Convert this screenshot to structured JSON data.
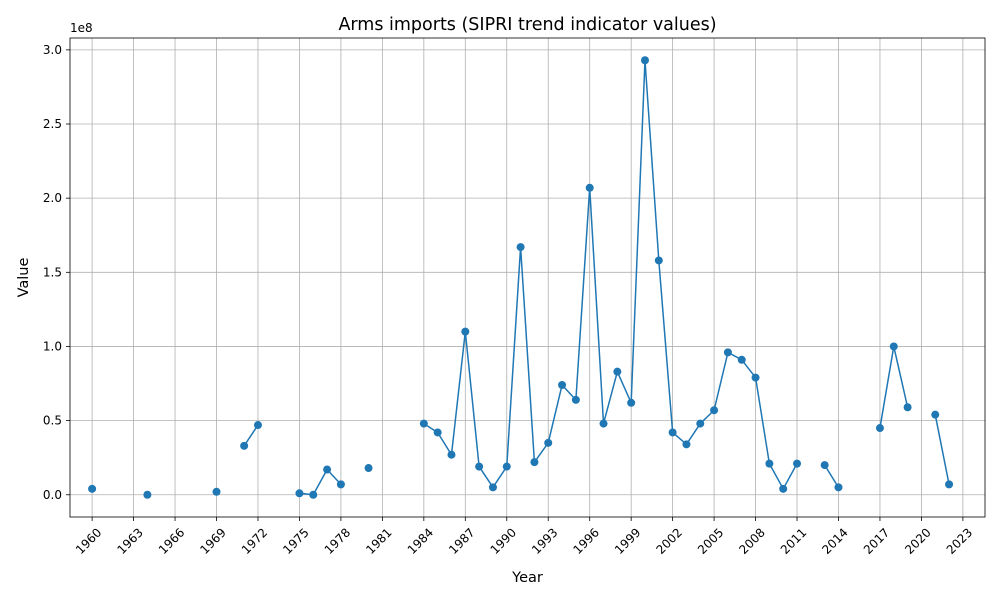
{
  "chart_data": {
    "type": "line",
    "title": "Arms imports (SIPRI trend indicator values)",
    "xlabel": "Year",
    "ylabel": "Value",
    "y_multiplier_label": "1e8",
    "xlim": [
      1958.4,
      2024.6
    ],
    "ylim": [
      -15000000,
      308000000
    ],
    "x_ticks": [
      1960,
      1963,
      1966,
      1969,
      1972,
      1975,
      1978,
      1981,
      1984,
      1987,
      1990,
      1993,
      1996,
      1999,
      2002,
      2005,
      2008,
      2011,
      2014,
      2017,
      2020,
      2023
    ],
    "y_ticks": [
      0,
      50000000,
      100000000,
      150000000,
      200000000,
      250000000,
      300000000
    ],
    "y_tick_labels": [
      "0.0",
      "0.5",
      "1.0",
      "1.5",
      "2.0",
      "2.5",
      "3.0"
    ],
    "grid": true,
    "color": "#1f77b4",
    "segments": [
      [
        {
          "x": 1960,
          "y": 4000000
        }
      ],
      [
        {
          "x": 1964,
          "y": 0
        }
      ],
      [
        {
          "x": 1969,
          "y": 2000000
        }
      ],
      [
        {
          "x": 1971,
          "y": 33000000
        },
        {
          "x": 1972,
          "y": 47000000
        }
      ],
      [
        {
          "x": 1975,
          "y": 1000000
        },
        {
          "x": 1976,
          "y": 0
        },
        {
          "x": 1977,
          "y": 17000000
        },
        {
          "x": 1978,
          "y": 7000000
        }
      ],
      [
        {
          "x": 1980,
          "y": 18000000
        }
      ],
      [
        {
          "x": 1984,
          "y": 48000000
        },
        {
          "x": 1985,
          "y": 42000000
        },
        {
          "x": 1986,
          "y": 27000000
        },
        {
          "x": 1987,
          "y": 110000000
        },
        {
          "x": 1988,
          "y": 19000000
        },
        {
          "x": 1989,
          "y": 5000000
        },
        {
          "x": 1990,
          "y": 19000000
        },
        {
          "x": 1991,
          "y": 167000000
        },
        {
          "x": 1992,
          "y": 22000000
        },
        {
          "x": 1993,
          "y": 35000000
        },
        {
          "x": 1994,
          "y": 74000000
        },
        {
          "x": 1995,
          "y": 64000000
        },
        {
          "x": 1996,
          "y": 207000000
        },
        {
          "x": 1997,
          "y": 48000000
        },
        {
          "x": 1998,
          "y": 83000000
        },
        {
          "x": 1999,
          "y": 62000000
        },
        {
          "x": 2000,
          "y": 293000000
        },
        {
          "x": 2001,
          "y": 158000000
        },
        {
          "x": 2002,
          "y": 42000000
        },
        {
          "x": 2003,
          "y": 34000000
        },
        {
          "x": 2004,
          "y": 48000000
        },
        {
          "x": 2005,
          "y": 57000000
        },
        {
          "x": 2006,
          "y": 96000000
        },
        {
          "x": 2007,
          "y": 91000000
        },
        {
          "x": 2008,
          "y": 79000000
        },
        {
          "x": 2009,
          "y": 21000000
        },
        {
          "x": 2010,
          "y": 4000000
        },
        {
          "x": 2011,
          "y": 21000000
        }
      ],
      [
        {
          "x": 2013,
          "y": 20000000
        },
        {
          "x": 2014,
          "y": 5000000
        }
      ],
      [
        {
          "x": 2017,
          "y": 45000000
        },
        {
          "x": 2018,
          "y": 100000000
        },
        {
          "x": 2019,
          "y": 59000000
        }
      ],
      [
        {
          "x": 2021,
          "y": 54000000
        },
        {
          "x": 2022,
          "y": 7000000
        }
      ]
    ]
  }
}
